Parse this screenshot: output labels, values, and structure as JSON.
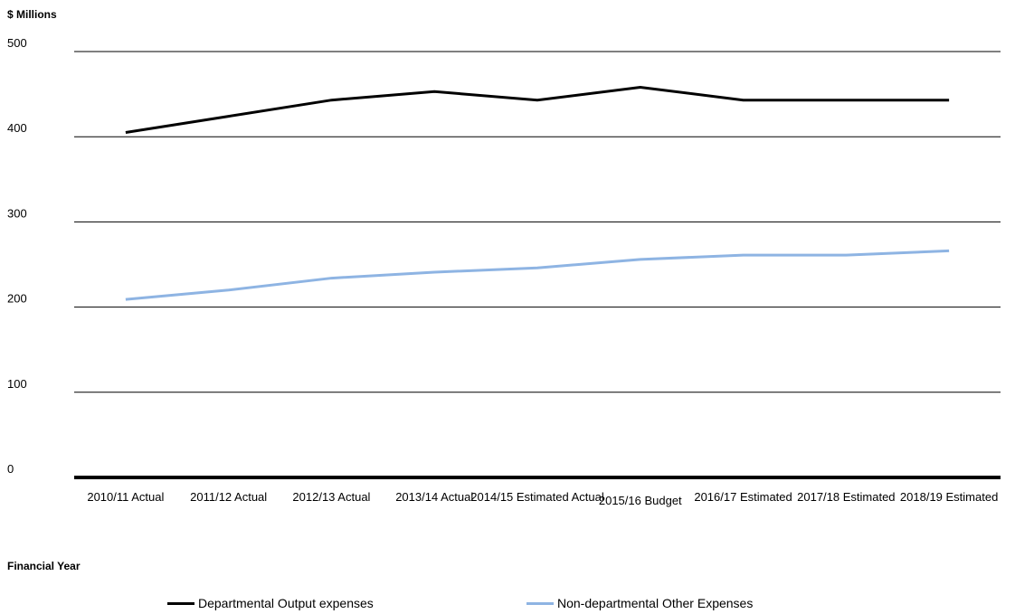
{
  "chart_data": {
    "type": "line",
    "ylabel": "$ Millions",
    "xlabel": "Financial Year",
    "ylim": [
      0,
      500
    ],
    "yticks": [
      "0",
      "100",
      "200",
      "300",
      "400",
      "500"
    ],
    "grid": true,
    "legend_position": "bottom",
    "categories": [
      "2010/11 Actual",
      "2011/12 Actual",
      "2012/13 Actual",
      "2013/14 Actual",
      "2014/15 Estimated Actual",
      "2015/16 Budget",
      "2016/17 Estimated",
      "2017/18 Estimated",
      "2018/19 Estimated"
    ],
    "series": [
      {
        "name": "Departmental Output expenses",
        "color": "#000000",
        "values": [
          405,
          424,
          443,
          453,
          443,
          458,
          443,
          443,
          443
        ]
      },
      {
        "name": "Non-departmental Other Expenses",
        "color": "#8eb4e3",
        "values": [
          209,
          220,
          234,
          241,
          246,
          256,
          261,
          261,
          266
        ]
      }
    ]
  }
}
